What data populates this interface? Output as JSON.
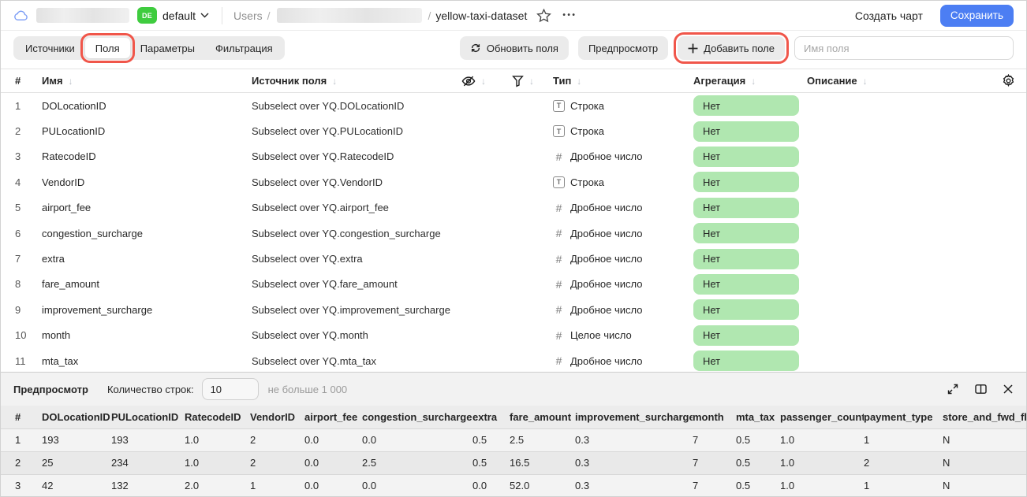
{
  "header": {
    "env_badge": "DE",
    "env_name": "default",
    "breadcrumb_root": "Users",
    "breadcrumb_separator": "/",
    "dataset_name": "yellow-taxi-dataset",
    "create_chart_label": "Создать чарт",
    "save_label": "Сохранить"
  },
  "toolbar": {
    "tabs": [
      {
        "id": "sources",
        "label": "Источники",
        "active": false,
        "annotated": false
      },
      {
        "id": "fields",
        "label": "Поля",
        "active": true,
        "annotated": true
      },
      {
        "id": "parameters",
        "label": "Параметры",
        "active": false,
        "annotated": false
      },
      {
        "id": "filtering",
        "label": "Фильтрация",
        "active": false,
        "annotated": false
      }
    ],
    "refresh_fields_label": "Обновить поля",
    "preview_label": "Предпросмотр",
    "add_field_label": "Добавить поле",
    "field_name_placeholder": "Имя поля"
  },
  "fields_table": {
    "headers": {
      "index": "#",
      "name": "Имя",
      "source": "Источник поля",
      "type": "Тип",
      "aggregation": "Агрегация",
      "description": "Описание"
    },
    "rows": [
      {
        "index": "1",
        "name": "DOLocationID",
        "source": "Subselect over YQ.DOLocationID",
        "type_kind": "string",
        "type_label": "Строка",
        "aggregation": "Нет",
        "description": ""
      },
      {
        "index": "2",
        "name": "PULocationID",
        "source": "Subselect over YQ.PULocationID",
        "type_kind": "string",
        "type_label": "Строка",
        "aggregation": "Нет",
        "description": ""
      },
      {
        "index": "3",
        "name": "RatecodeID",
        "source": "Subselect over YQ.RatecodeID",
        "type_kind": "number",
        "type_label": "Дробное число",
        "aggregation": "Нет",
        "description": ""
      },
      {
        "index": "4",
        "name": "VendorID",
        "source": "Subselect over YQ.VendorID",
        "type_kind": "string",
        "type_label": "Строка",
        "aggregation": "Нет",
        "description": ""
      },
      {
        "index": "5",
        "name": "airport_fee",
        "source": "Subselect over YQ.airport_fee",
        "type_kind": "number",
        "type_label": "Дробное число",
        "aggregation": "Нет",
        "description": ""
      },
      {
        "index": "6",
        "name": "congestion_surcharge",
        "source": "Subselect over YQ.congestion_surcharge",
        "type_kind": "number",
        "type_label": "Дробное число",
        "aggregation": "Нет",
        "description": ""
      },
      {
        "index": "7",
        "name": "extra",
        "source": "Subselect over YQ.extra",
        "type_kind": "number",
        "type_label": "Дробное число",
        "aggregation": "Нет",
        "description": ""
      },
      {
        "index": "8",
        "name": "fare_amount",
        "source": "Subselect over YQ.fare_amount",
        "type_kind": "number",
        "type_label": "Дробное число",
        "aggregation": "Нет",
        "description": ""
      },
      {
        "index": "9",
        "name": "improvement_surcharge",
        "source": "Subselect over YQ.improvement_surcharge",
        "type_kind": "number",
        "type_label": "Дробное число",
        "aggregation": "Нет",
        "description": ""
      },
      {
        "index": "10",
        "name": "month",
        "source": "Subselect over YQ.month",
        "type_kind": "number",
        "type_label": "Целое число",
        "aggregation": "Нет",
        "description": ""
      },
      {
        "index": "11",
        "name": "mta_tax",
        "source": "Subselect over YQ.mta_tax",
        "type_kind": "number",
        "type_label": "Дробное число",
        "aggregation": "Нет",
        "description": ""
      }
    ]
  },
  "preview": {
    "title": "Предпросмотр",
    "row_count_label": "Количество строк:",
    "row_count_value": "10",
    "hint": "не больше 1 000",
    "columns": [
      "#",
      "DOLocationID",
      "PULocationID",
      "RatecodeID",
      "VendorID",
      "airport_fee",
      "congestion_surcharge",
      "extra",
      "fare_amount",
      "improvement_surcharge",
      "month",
      "mta_tax",
      "passenger_count",
      "payment_type",
      "store_and_fwd_flag"
    ],
    "rows": [
      [
        "1",
        "193",
        "193",
        "1.0",
        "2",
        "0.0",
        "0.0",
        "0.5",
        "2.5",
        "0.3",
        "7",
        "0.5",
        "1.0",
        "1",
        "N"
      ],
      [
        "2",
        "25",
        "234",
        "1.0",
        "2",
        "0.0",
        "2.5",
        "0.5",
        "16.5",
        "0.3",
        "7",
        "0.5",
        "1.0",
        "2",
        "N"
      ],
      [
        "3",
        "42",
        "132",
        "2.0",
        "1",
        "0.0",
        "0.0",
        "0.0",
        "52.0",
        "0.3",
        "7",
        "0.5",
        "1.0",
        "1",
        "N"
      ]
    ]
  },
  "colors": {
    "save_button": "#4c7ef3",
    "env_badge": "#3fcc3f",
    "aggregation_badge": "#b0e7b0",
    "annotation_box": "#f0564a",
    "tab_bar_bg": "#ebebeb"
  }
}
